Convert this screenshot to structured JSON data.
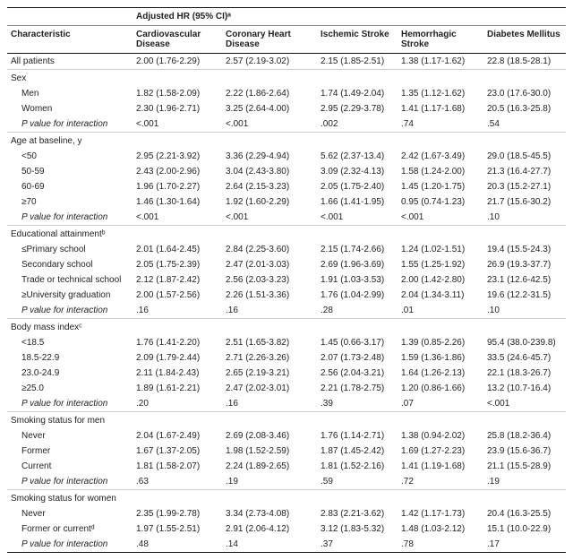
{
  "header": {
    "super": "Adjusted HR (95% CI)ᵃ",
    "char": "Characteristic",
    "cols": [
      "Cardiovascular Disease",
      "Coronary Heart Disease",
      "Ischemic Stroke",
      "Hemorrhagic Stroke",
      "Diabetes Mellitus"
    ]
  },
  "rows": [
    {
      "type": "data",
      "label": "All patients",
      "indent": 0,
      "v": [
        "2.00 (1.76-2.29)",
        "2.57 (2.19-3.02)",
        "2.15 (1.85-2.51)",
        "1.38 (1.17-1.62)",
        "22.8 (18.5-28.1)"
      ],
      "first": true
    },
    {
      "type": "section",
      "label": "Sex"
    },
    {
      "type": "data",
      "label": "Men",
      "indent": 1,
      "v": [
        "1.82 (1.58-2.09)",
        "2.22 (1.86-2.64)",
        "1.74 (1.49-2.04)",
        "1.35 (1.12-1.62)",
        "23.0 (17.6-30.0)"
      ]
    },
    {
      "type": "data",
      "label": "Women",
      "indent": 1,
      "v": [
        "2.30 (1.96-2.71)",
        "3.25 (2.64-4.00)",
        "2.95 (2.29-3.78)",
        "1.41 (1.17-1.68)",
        "20.5 (16.3-25.8)"
      ]
    },
    {
      "type": "pval",
      "label": "P value for interaction",
      "v": [
        "<.001",
        "<.001",
        ".002",
        ".74",
        ".54"
      ]
    },
    {
      "type": "section",
      "label": "Age at baseline, y"
    },
    {
      "type": "data",
      "label": "<50",
      "indent": 1,
      "v": [
        "2.95 (2.21-3.92)",
        "3.36 (2.29-4.94)",
        "5.62 (2.37-13.4)",
        "2.42 (1.67-3.49)",
        "29.0 (18.5-45.5)"
      ]
    },
    {
      "type": "data",
      "label": "50-59",
      "indent": 1,
      "v": [
        "2.43 (2.00-2.96)",
        "3.04 (2.43-3.80)",
        "3.09 (2.32-4.13)",
        "1.58 (1.24-2.00)",
        "21.3 (16.4-27.7)"
      ]
    },
    {
      "type": "data",
      "label": "60-69",
      "indent": 1,
      "v": [
        "1.96 (1.70-2.27)",
        "2.64 (2.15-3.23)",
        "2.05 (1.75-2.40)",
        "1.45 (1.20-1.75)",
        "20.3 (15.2-27.1)"
      ]
    },
    {
      "type": "data",
      "label": "≥70",
      "indent": 1,
      "v": [
        "1.46 (1.30-1.64)",
        "1.92 (1.60-2.29)",
        "1.66 (1.41-1.95)",
        "0.95 (0.74-1.23)",
        "21.7 (15.6-30.2)"
      ]
    },
    {
      "type": "pval",
      "label": "P value for interaction",
      "v": [
        "<.001",
        "<.001",
        "<.001",
        "<.001",
        ".10"
      ]
    },
    {
      "type": "section",
      "label": "Educational attainmentᵇ"
    },
    {
      "type": "data",
      "label": "≤Primary school",
      "indent": 1,
      "v": [
        "2.01 (1.64-2.45)",
        "2.84 (2.25-3.60)",
        "2.15 (1.74-2.66)",
        "1.24 (1.02-1.51)",
        "19.4 (15.5-24.3)"
      ]
    },
    {
      "type": "data",
      "label": "Secondary school",
      "indent": 1,
      "v": [
        "2.05 (1.75-2.39)",
        "2.47 (2.01-3.03)",
        "2.69 (1.96-3.69)",
        "1.55 (1.25-1.92)",
        "26.9 (19.3-37.7)"
      ]
    },
    {
      "type": "data",
      "label": "Trade or technical school",
      "indent": 1,
      "v": [
        "2.12 (1.87-2.42)",
        "2.56 (2.03-3.23)",
        "1.91 (1.03-3.53)",
        "2.00 (1.42-2.80)",
        "23.1 (12.6-42.5)"
      ]
    },
    {
      "type": "data",
      "label": "≥University graduation",
      "indent": 1,
      "v": [
        "2.00 (1.57-2.56)",
        "2.26 (1.51-3.36)",
        "1.76 (1.04-2.99)",
        "2.04 (1.34-3.11)",
        "19.6 (12.2-31.5)"
      ]
    },
    {
      "type": "pval",
      "label": "P value for interaction",
      "v": [
        ".16",
        ".16",
        ".28",
        ".01",
        ".10"
      ]
    },
    {
      "type": "section",
      "label": "Body mass indexᶜ"
    },
    {
      "type": "data",
      "label": "<18.5",
      "indent": 1,
      "v": [
        "1.76 (1.41-2.20)",
        "2.51 (1.65-3.82)",
        "1.45 (0.66-3.17)",
        "1.39 (0.85-2.26)",
        "95.4 (38.0-239.8)"
      ]
    },
    {
      "type": "data",
      "label": "18.5-22.9",
      "indent": 1,
      "v": [
        "2.09 (1.79-2.44)",
        "2.71 (2.26-3.26)",
        "2.07 (1.73-2.48)",
        "1.59 (1.36-1.86)",
        "33.5 (24.6-45.7)"
      ]
    },
    {
      "type": "data",
      "label": "23.0-24.9",
      "indent": 1,
      "v": [
        "2.11 (1.84-2.43)",
        "2.65 (2.19-3.21)",
        "2.56 (2.04-3.21)",
        "1.64 (1.26-2.13)",
        "22.1 (18.3-26.7)"
      ]
    },
    {
      "type": "data",
      "label": "≥25.0",
      "indent": 1,
      "v": [
        "1.89 (1.61-2.21)",
        "2.47 (2.02-3.01)",
        "2.21 (1.78-2.75)",
        "1.20 (0.86-1.66)",
        "13.2 (10.7-16.4)"
      ]
    },
    {
      "type": "pval",
      "label": "P value for interaction",
      "v": [
        ".20",
        ".16",
        ".39",
        ".07",
        "<.001"
      ]
    },
    {
      "type": "section",
      "label": "Smoking status for men"
    },
    {
      "type": "data",
      "label": "Never",
      "indent": 1,
      "v": [
        "2.04 (1.67-2.49)",
        "2.69 (2.08-3.46)",
        "1.76 (1.14-2.71)",
        "1.38 (0.94-2.02)",
        "25.8 (18.2-36.4)"
      ]
    },
    {
      "type": "data",
      "label": "Former",
      "indent": 1,
      "v": [
        "1.67 (1.37-2.05)",
        "1.98 (1.52-2.59)",
        "1.87 (1.45-2.42)",
        "1.69 (1.27-2.23)",
        "23.9 (15.6-36.7)"
      ]
    },
    {
      "type": "data",
      "label": "Current",
      "indent": 1,
      "v": [
        "1.81 (1.58-2.07)",
        "2.24 (1.89-2.65)",
        "1.81 (1.52-2.16)",
        "1.41 (1.19-1.68)",
        "21.1 (15.5-28.9)"
      ]
    },
    {
      "type": "pval",
      "label": "P value for interaction",
      "v": [
        ".63",
        ".19",
        ".59",
        ".72",
        ".19"
      ]
    },
    {
      "type": "section",
      "label": "Smoking status for women"
    },
    {
      "type": "data",
      "label": "Never",
      "indent": 1,
      "v": [
        "2.35 (1.99-2.78)",
        "3.34 (2.73-4.08)",
        "2.83 (2.21-3.62)",
        "1.42 (1.17-1.73)",
        "20.4 (16.3-25.5)"
      ]
    },
    {
      "type": "data",
      "label": "Former or currentᵈ",
      "indent": 1,
      "v": [
        "1.97 (1.55-2.51)",
        "2.91 (2.06-4.12)",
        "3.12 (1.83-5.32)",
        "1.48 (1.03-2.12)",
        "15.1 (10.0-22.9)"
      ]
    },
    {
      "type": "pval",
      "label": "P value for interaction",
      "v": [
        ".48",
        ".14",
        ".37",
        ".78",
        ".17"
      ],
      "last": true
    }
  ]
}
